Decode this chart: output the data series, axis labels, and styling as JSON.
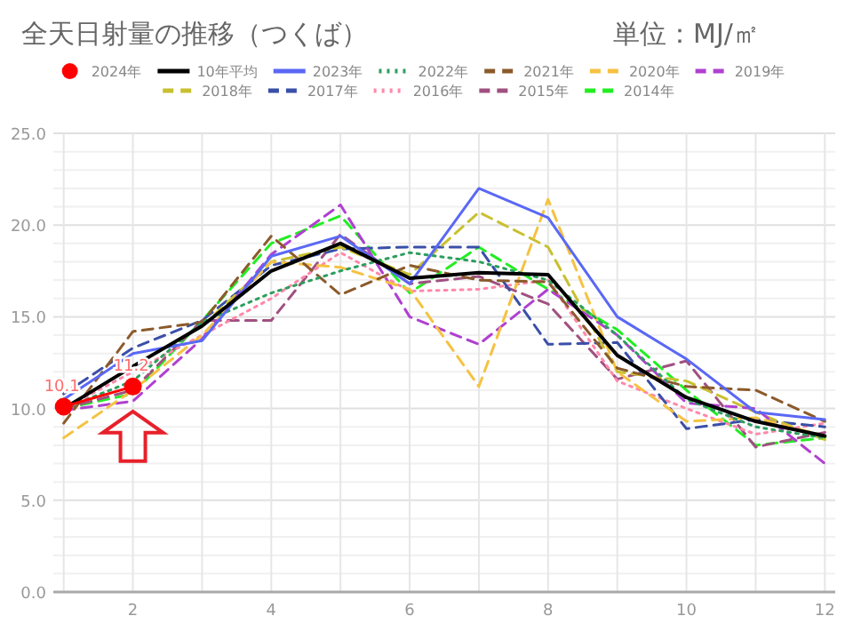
{
  "chart_data": {
    "type": "line",
    "title": "全天日射量の推移（つくば）",
    "subtitle": "単位：MJ/㎡",
    "x": [
      1,
      2,
      3,
      4,
      5,
      6,
      7,
      8,
      9,
      10,
      11,
      12
    ],
    "xlim": [
      0.85,
      12.15
    ],
    "ylim": [
      0,
      25
    ],
    "xticks": [
      {
        "value": 1,
        "label": null
      },
      2,
      {
        "value": 3,
        "label": null
      },
      4,
      {
        "value": 5,
        "label": null
      },
      6,
      {
        "value": 7,
        "label": null
      },
      8,
      {
        "value": 9,
        "label": null
      },
      10,
      {
        "value": 11,
        "label": null
      },
      12
    ],
    "yticks": [
      {
        "value": 0,
        "label": "0.0"
      },
      {
        "value": 1,
        "label": null
      },
      {
        "value": 2,
        "label": null
      },
      {
        "value": 3,
        "label": null
      },
      {
        "value": 4,
        "label": null
      },
      {
        "value": 5,
        "label": "5.0"
      },
      {
        "value": 6,
        "label": null
      },
      {
        "value": 7,
        "label": null
      },
      {
        "value": 8,
        "label": null
      },
      {
        "value": 9,
        "label": null
      },
      {
        "value": 10,
        "label": "10.0"
      },
      {
        "value": 11,
        "label": null
      },
      {
        "value": 12,
        "label": null
      },
      {
        "value": 13,
        "label": null
      },
      {
        "value": 14,
        "label": null
      },
      {
        "value": 15,
        "label": "15.0"
      },
      {
        "value": 16,
        "label": null
      },
      {
        "value": 17,
        "label": null
      },
      {
        "value": 18,
        "label": null
      },
      {
        "value": 19,
        "label": null
      },
      {
        "value": 20,
        "label": "20.0"
      },
      {
        "value": 21,
        "label": null
      },
      {
        "value": 22,
        "label": null
      },
      {
        "value": 23,
        "label": null
      },
      {
        "value": 24,
        "label": null
      },
      {
        "value": 25,
        "label": "25.0"
      }
    ],
    "grid": true,
    "legend": "top",
    "series": [
      {
        "name": "2024年",
        "color": "#ff0000",
        "marker": "circle",
        "line_style": "solid",
        "values": [
          10.1,
          11.2,
          null,
          null,
          null,
          null,
          null,
          null,
          null,
          null,
          null,
          null
        ],
        "value_labels": [
          "10.1",
          "11.2",
          null,
          null,
          null,
          null,
          null,
          null,
          null,
          null,
          null,
          null
        ]
      },
      {
        "name": "10年平均",
        "color": "#000000",
        "line_style": "solid",
        "values": [
          10.0,
          12.3,
          14.5,
          17.5,
          19.0,
          17.1,
          17.4,
          17.3,
          12.9,
          10.6,
          9.3,
          8.5
        ]
      },
      {
        "name": "2023年",
        "color": "#5a68f5",
        "line_style": "solid",
        "values": [
          10.5,
          13.0,
          13.7,
          18.3,
          19.4,
          16.8,
          22.0,
          20.4,
          15.0,
          12.7,
          9.8,
          9.4
        ]
      },
      {
        "name": "2022年",
        "color": "#2e9e5e",
        "line_style": "dotted",
        "values": [
          10.0,
          11.5,
          14.7,
          16.3,
          17.5,
          18.5,
          18.0,
          17.0,
          14.0,
          10.5,
          9.0,
          8.4
        ]
      },
      {
        "name": "2021年",
        "color": "#8b5a2b",
        "line_style": "dashed",
        "values": [
          9.2,
          14.2,
          14.7,
          19.4,
          16.2,
          17.8,
          17.0,
          16.9,
          12.2,
          11.2,
          11.0,
          9.3
        ]
      },
      {
        "name": "2020年",
        "color": "#f5c242",
        "line_style": "dashed",
        "values": [
          8.4,
          11.0,
          14.0,
          18.0,
          17.7,
          16.5,
          11.2,
          21.4,
          12.0,
          9.3,
          9.5,
          8.5
        ]
      },
      {
        "name": "2019年",
        "color": "#b040d0",
        "line_style": "dashed",
        "values": [
          9.9,
          10.4,
          13.8,
          18.4,
          21.1,
          15.0,
          13.5,
          16.5,
          14.0,
          10.3,
          10.0,
          7.0
        ]
      },
      {
        "name": "2018年",
        "color": "#c8c030",
        "line_style": "dashed",
        "values": [
          10.0,
          12.3,
          14.5,
          18.0,
          18.8,
          17.3,
          20.7,
          18.8,
          12.0,
          11.5,
          9.8,
          8.3
        ]
      },
      {
        "name": "2017年",
        "color": "#3a4fa8",
        "line_style": "dashed",
        "values": [
          10.8,
          13.3,
          14.8,
          17.8,
          18.7,
          18.8,
          18.8,
          13.5,
          13.6,
          8.9,
          9.4,
          9.0
        ]
      },
      {
        "name": "2016年",
        "color": "#ff88aa",
        "line_style": "dotted",
        "values": [
          10.0,
          12.0,
          14.0,
          16.0,
          18.5,
          16.4,
          16.5,
          17.0,
          11.5,
          10.0,
          8.6,
          9.2
        ]
      },
      {
        "name": "2015年",
        "color": "#a05080",
        "line_style": "dashed",
        "values": [
          10.0,
          11.0,
          14.8,
          14.8,
          19.5,
          16.8,
          17.2,
          15.7,
          11.6,
          12.6,
          7.9,
          8.7
        ]
      },
      {
        "name": "2014年",
        "color": "#22ee22",
        "line_style": "dashed",
        "values": [
          10.0,
          10.8,
          14.8,
          19.0,
          20.5,
          16.3,
          18.8,
          16.5,
          14.3,
          11.0,
          8.0,
          8.4
        ]
      }
    ]
  }
}
